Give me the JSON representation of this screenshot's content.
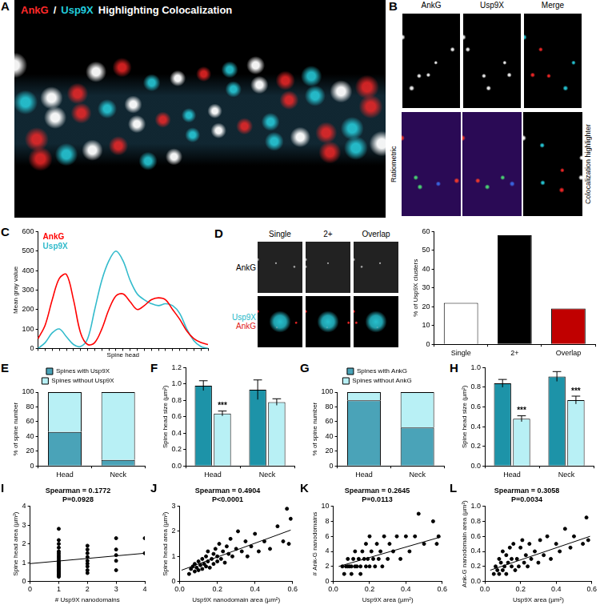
{
  "images": [
    {
      "panel_label": "A",
      "title_parts": [
        {
          "text": "AnkG",
          "color": "#ff2a2a"
        },
        {
          "text": "/",
          "color": "#ffffff"
        },
        {
          "text": "Usp9X",
          "color": "#22ccdd"
        },
        {
          "text": "Highlighting Colocalization",
          "color": "#ffffff"
        }
      ]
    },
    {
      "panel_label": "B",
      "column_labels": [
        "AnkG",
        "Usp9X",
        "Merge"
      ],
      "row_labels": [
        "Ratiometric",
        "Colocalization highlighter"
      ]
    },
    {
      "panel_label": "D",
      "column_labels": [
        "Single",
        "2+",
        "Overlap"
      ],
      "row_labels": [
        [
          {
            "text": "AnkG",
            "color": "#000000"
          }
        ],
        [
          {
            "text": "Usp9X",
            "color": "#22b8c8"
          },
          {
            "text": "AnkG",
            "color": "#e02020"
          }
        ]
      ]
    }
  ],
  "chart_data": [
    {
      "panel_label": "C",
      "type": "line",
      "categories": [
        null,
        null,
        null,
        null,
        null,
        null,
        null,
        null,
        null,
        null,
        null,
        null,
        null,
        null,
        null,
        null,
        null,
        null,
        null,
        null,
        null,
        null,
        null,
        null,
        null
      ],
      "series": [
        {
          "name": "AnkG",
          "color": "#ff0000",
          "values": [
            50,
            120,
            250,
            360,
            380,
            250,
            80,
            20,
            30,
            100,
            200,
            270,
            280,
            240,
            200,
            220,
            250,
            260,
            250,
            200,
            150,
            90,
            50,
            30,
            20
          ]
        },
        {
          "name": "Usp9X",
          "color": "#33bbcc",
          "values": [
            0,
            30,
            80,
            100,
            60,
            20,
            10,
            50,
            200,
            350,
            450,
            500,
            450,
            350,
            280,
            250,
            230,
            220,
            230,
            220,
            180,
            100,
            40,
            10,
            0
          ]
        }
      ],
      "x_label": "Spine head",
      "y_label": "Mean gray value",
      "ylim": [
        0,
        600
      ],
      "yticks": [
        0,
        100,
        200,
        300,
        400,
        500,
        600
      ],
      "grid": false,
      "legend": "top-left",
      "tick_labels": "y"
    },
    {
      "type": "bar",
      "categories": [
        "Single",
        "2+",
        "Overlap"
      ],
      "values": [
        22,
        58,
        19
      ],
      "colors": [
        "#ffffff",
        "#000000",
        "#c00000"
      ],
      "y_label": "% of Usp9X clusters",
      "ylim": [
        0,
        60
      ],
      "yticks": [
        0,
        10,
        20,
        30,
        40,
        50,
        60
      ],
      "grid": false
    },
    {
      "panel_label": "E",
      "type": "bar",
      "stacked": true,
      "categories": [
        "Head",
        "Neck"
      ],
      "series": [
        {
          "name": "Spines with Usp9X",
          "color": "#4aa3b8",
          "values": [
            46,
            8
          ]
        },
        {
          "name": "Spines without Usp9X",
          "color": "#b8f0f5",
          "values": [
            54,
            92
          ]
        }
      ],
      "y_label": "% of spine number",
      "ylim": [
        0,
        100
      ],
      "yticks": [
        0,
        20,
        40,
        60,
        80,
        100
      ],
      "legend": "top",
      "grid": false
    },
    {
      "panel_label": "F",
      "type": "bar",
      "categories": [
        "Head",
        "Neck"
      ],
      "series": [
        {
          "color": "#1d93a8",
          "values": [
            0.98,
            0.93
          ],
          "errors": [
            0.06,
            0.12
          ]
        },
        {
          "color": "#b8f0f5",
          "values": [
            0.64,
            0.78
          ],
          "errors": [
            0.03,
            0.04
          ]
        }
      ],
      "annotations": [
        {
          "category": "Head",
          "series": 1,
          "text": "***"
        }
      ],
      "y_label": "Spine head size (µm²)",
      "ylim": [
        0,
        1.2
      ],
      "yticks": [
        {
          "value": 0,
          "label": "0.0"
        },
        0.2,
        0.4,
        0.6,
        0.8,
        {
          "value": 1,
          "label": "1.0"
        },
        1.2
      ],
      "grid": false
    },
    {
      "panel_label": "G",
      "type": "bar",
      "stacked": true,
      "categories": [
        "Head",
        "Neck"
      ],
      "series": [
        {
          "name": "Spines with AnkG",
          "color": "#4aa3b8",
          "values": [
            89,
            52
          ]
        },
        {
          "name": "Spines without AnkG",
          "color": "#b8f0f5",
          "values": [
            11,
            48
          ]
        }
      ],
      "y_label": "% of spine number",
      "ylim": [
        0,
        100
      ],
      "yticks": [
        0,
        20,
        40,
        60,
        80,
        100
      ],
      "legend": "top",
      "grid": false
    },
    {
      "panel_label": "H",
      "type": "bar",
      "categories": [
        "Head",
        "Neck"
      ],
      "series": [
        {
          "color": "#1d93a8",
          "values": [
            0.84,
            0.91
          ],
          "errors": [
            0.04,
            0.05
          ]
        },
        {
          "color": "#b8f0f5",
          "values": [
            0.48,
            0.67
          ],
          "errors": [
            0.03,
            0.04
          ]
        }
      ],
      "annotations": [
        {
          "category": "Head",
          "series": 1,
          "text": "***"
        },
        {
          "category": "Neck",
          "series": 1,
          "text": "***"
        }
      ],
      "y_label": "Spine head size (µm²)",
      "ylim": [
        0,
        1
      ],
      "yticks": [
        {
          "value": 0,
          "label": "0.0"
        },
        0.2,
        0.4,
        0.6,
        0.8,
        {
          "value": 1,
          "label": "1.0"
        }
      ],
      "grid": false
    },
    {
      "panel_label": "I",
      "type": "scatter",
      "color": "#000000",
      "x": [
        1,
        1,
        1,
        1,
        1,
        1,
        1,
        1,
        1,
        1,
        1,
        1,
        1,
        1,
        1,
        1,
        1,
        1,
        1,
        1,
        1,
        1,
        1,
        1,
        1,
        1,
        1,
        2,
        2,
        2,
        2,
        2,
        2,
        2,
        2,
        2,
        3,
        3,
        3,
        3,
        3,
        4,
        4
      ],
      "values": [
        0.25,
        0.3,
        0.35,
        0.4,
        0.45,
        0.5,
        0.55,
        0.6,
        0.65,
        0.7,
        0.75,
        0.8,
        0.85,
        0.9,
        0.95,
        1.0,
        1.05,
        1.1,
        1.2,
        1.3,
        1.4,
        1.5,
        1.6,
        1.8,
        2.0,
        2.2,
        2.8,
        0.45,
        0.6,
        0.8,
        0.95,
        1.1,
        1.3,
        1.5,
        1.7,
        1.9,
        0.6,
        1.1,
        1.4,
        1.7,
        2.3,
        1.5,
        2.3
      ],
      "trendline": {
        "x": [
          0,
          4
        ],
        "values": [
          0.95,
          1.5
        ]
      },
      "annotations": [
        "Spearman = 0.1772",
        "P=0.0928"
      ],
      "x_label": "# Usp9X nanodomains",
      "y_label": "Spine head area (µm²)",
      "xlim": [
        0,
        4
      ],
      "xticks": [
        0,
        1,
        2,
        3,
        4
      ],
      "ylim": [
        0,
        4
      ],
      "yticks": [
        0,
        1,
        2,
        3,
        4
      ],
      "grid": false
    },
    {
      "panel_label": "J",
      "type": "scatter",
      "color": "#000000",
      "x": [
        0.05,
        0.06,
        0.07,
        0.08,
        0.08,
        0.09,
        0.1,
        0.1,
        0.11,
        0.12,
        0.12,
        0.13,
        0.14,
        0.14,
        0.15,
        0.15,
        0.16,
        0.17,
        0.18,
        0.18,
        0.19,
        0.2,
        0.2,
        0.21,
        0.22,
        0.23,
        0.24,
        0.25,
        0.26,
        0.27,
        0.28,
        0.3,
        0.31,
        0.33,
        0.35,
        0.36,
        0.38,
        0.4,
        0.42,
        0.45,
        0.48,
        0.52,
        0.55,
        0.57,
        0.58,
        0.59
      ],
      "values": [
        0.3,
        0.5,
        0.6,
        0.4,
        0.7,
        0.55,
        0.8,
        0.45,
        0.65,
        0.9,
        0.5,
        0.7,
        1.0,
        0.6,
        0.8,
        1.2,
        0.55,
        0.9,
        1.1,
        0.7,
        1.3,
        0.8,
        1.0,
        1.5,
        0.9,
        1.2,
        0.75,
        1.4,
        1.1,
        1.7,
        1.0,
        1.3,
        2.0,
        1.2,
        1.6,
        1.0,
        1.4,
        1.9,
        1.2,
        1.6,
        1.3,
        2.2,
        1.6,
        2.9,
        1.5,
        2.5
      ],
      "trendline": {
        "x": [
          0.01,
          0.59
        ],
        "values": [
          0.45,
          2.05
        ]
      },
      "annotations": [
        "Spearman = 0.4904",
        "P<0.0001"
      ],
      "x_label": "Usp9X nanodomain area (µm²)",
      "y_label": "Spine head area (µm²)",
      "xlim": [
        0,
        0.6
      ],
      "xticks": [
        {
          "value": 0,
          "label": "0.0"
        },
        0.2,
        0.4,
        0.6
      ],
      "ylim": [
        0,
        3
      ],
      "yticks": [
        0,
        1,
        2,
        3
      ],
      "grid": false
    },
    {
      "panel_label": "K",
      "type": "scatter",
      "color": "#000000",
      "x": [
        0.05,
        0.06,
        0.07,
        0.08,
        0.08,
        0.09,
        0.1,
        0.1,
        0.11,
        0.12,
        0.12,
        0.13,
        0.14,
        0.15,
        0.15,
        0.16,
        0.17,
        0.18,
        0.18,
        0.19,
        0.2,
        0.2,
        0.21,
        0.22,
        0.23,
        0.24,
        0.25,
        0.26,
        0.27,
        0.28,
        0.3,
        0.31,
        0.33,
        0.35,
        0.37,
        0.4,
        0.42,
        0.45,
        0.47,
        0.5,
        0.55,
        0.57,
        0.58
      ],
      "values": [
        2,
        1,
        2,
        2,
        3,
        2,
        1,
        2,
        3,
        2,
        4,
        2,
        3,
        2,
        1,
        4,
        3,
        2,
        5,
        3,
        2,
        6,
        4,
        3,
        2,
        5,
        3,
        4,
        2,
        6,
        3,
        5,
        4,
        6,
        3,
        6,
        4,
        6,
        9,
        5,
        8,
        5,
        6
      ],
      "trendline": {
        "x": [
          0.03,
          0.59
        ],
        "values": [
          2.0,
          5.9
        ]
      },
      "annotations": [
        "Spearman = 0.2645",
        "P=0.0113"
      ],
      "x_label": "Usp9X area (µm²)",
      "y_label": "# Ank-G nanodomains",
      "xlim": [
        0,
        0.6
      ],
      "xticks": [
        {
          "value": 0,
          "label": "0.0"
        },
        0.2,
        0.4,
        0.6
      ],
      "ylim": [
        0,
        10
      ],
      "yticks": [
        0,
        2,
        4,
        6,
        8,
        10
      ],
      "grid": false
    },
    {
      "panel_label": "L",
      "type": "scatter",
      "color": "#000000",
      "x": [
        0.05,
        0.06,
        0.07,
        0.08,
        0.08,
        0.09,
        0.1,
        0.1,
        0.11,
        0.12,
        0.12,
        0.13,
        0.14,
        0.15,
        0.15,
        0.16,
        0.17,
        0.18,
        0.19,
        0.2,
        0.21,
        0.22,
        0.23,
        0.24,
        0.25,
        0.26,
        0.28,
        0.3,
        0.31,
        0.33,
        0.35,
        0.37,
        0.4,
        0.42,
        0.45,
        0.48,
        0.5,
        0.55,
        0.57,
        0.58
      ],
      "values": [
        0.1,
        0.2,
        0.15,
        0.3,
        0.1,
        0.25,
        0.4,
        0.15,
        0.2,
        0.35,
        0.1,
        0.25,
        0.45,
        0.2,
        0.3,
        0.5,
        0.15,
        0.3,
        0.2,
        0.45,
        0.55,
        0.25,
        0.35,
        0.2,
        0.5,
        0.3,
        0.4,
        0.25,
        0.55,
        0.35,
        0.6,
        0.3,
        0.5,
        0.4,
        0.7,
        0.45,
        0.6,
        0.5,
        0.85,
        0.55
      ],
      "trendline": {
        "x": [
          0.03,
          0.59
        ],
        "values": [
          0.15,
          0.6
        ]
      },
      "annotations": [
        "Spearman = 0.3058",
        "P=0.0034"
      ],
      "x_label": "Usp9X area (µm²)",
      "y_label": "Ank-G nanodomain area (µm²)",
      "xlim": [
        0,
        0.6
      ],
      "xticks": [
        {
          "value": 0,
          "label": "0.0"
        },
        0.2,
        0.4,
        0.6
      ],
      "ylim": [
        0,
        1
      ],
      "yticks": [
        {
          "value": 0,
          "label": "0.0"
        },
        0.2,
        0.4,
        0.6,
        0.8,
        {
          "value": 1,
          "label": "1.0"
        }
      ],
      "grid": false
    }
  ]
}
